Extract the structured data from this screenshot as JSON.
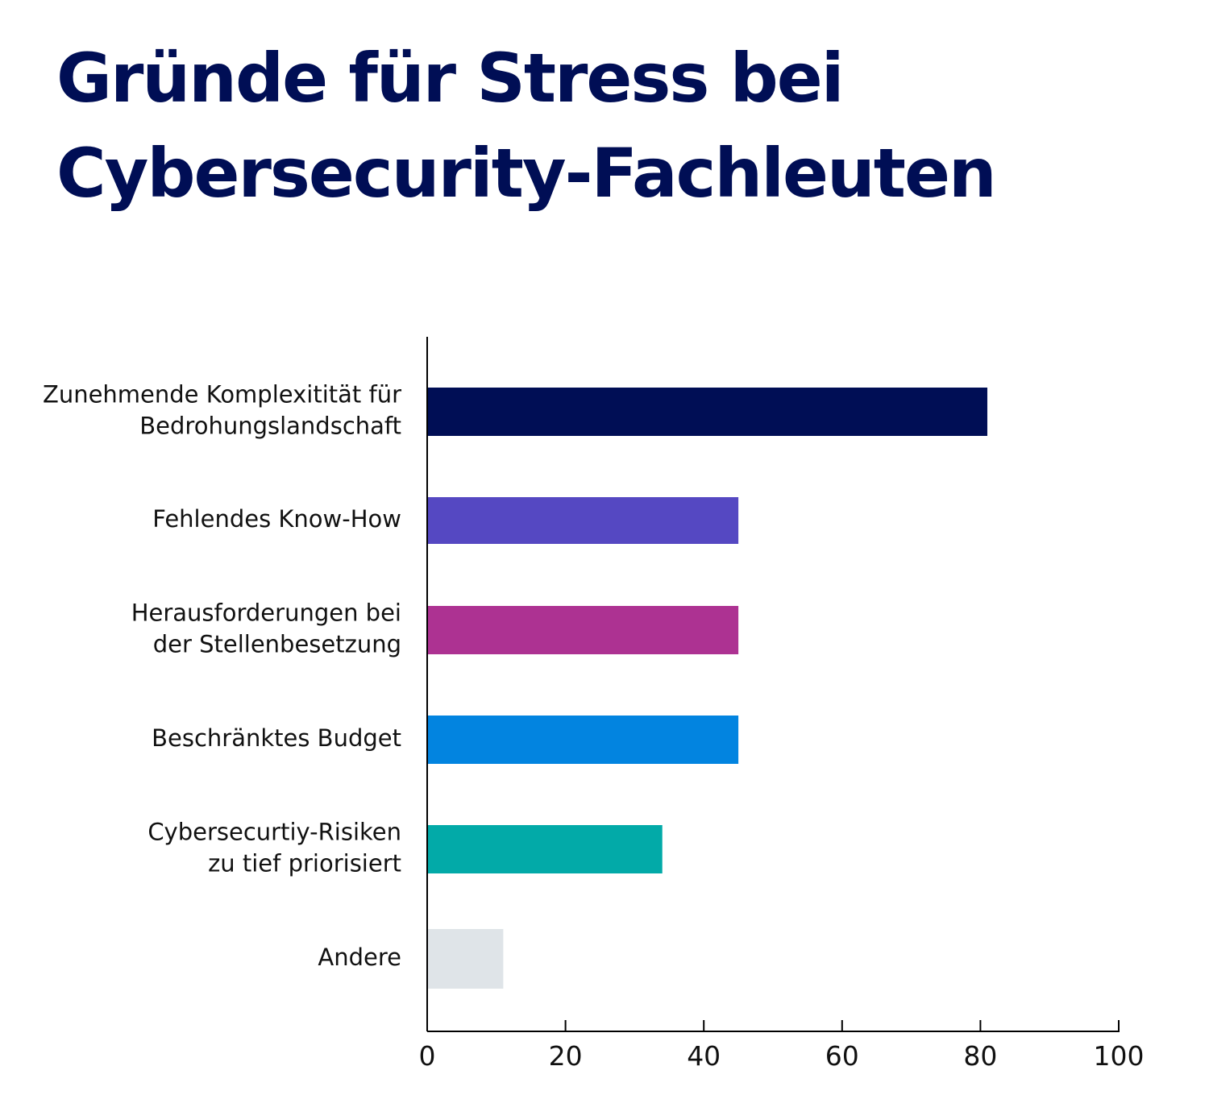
{
  "title_lines": [
    "Gründe für Stress bei",
    "Cybersecurity-Fachleuten"
  ],
  "colors": {
    "title": "#000e55",
    "axis": "#000000",
    "text": "#111111"
  },
  "chart_data": {
    "type": "bar",
    "orientation": "horizontal",
    "categories": [
      [
        "Zunehmende Komplexitität für",
        "Bedrohungslandschaft"
      ],
      [
        "Fehlendes Know-How"
      ],
      [
        "Herausforderungen bei",
        "der Stellenbesetzung"
      ],
      [
        "Beschränktes Budget"
      ],
      [
        "Cybersecurtiy-Risiken",
        "zu tief priorisiert"
      ],
      [
        "Andere"
      ]
    ],
    "values": [
      81,
      45,
      45,
      45,
      34,
      11
    ],
    "bar_colors": [
      "#000e55",
      "#5548c2",
      "#ad3292",
      "#0284e0",
      "#02aaa8",
      "#dfe4e8"
    ],
    "xlim": [
      0,
      100
    ],
    "xticks": [
      "0",
      "20",
      "40",
      "60",
      "80",
      "100"
    ],
    "grid": false,
    "legend": "none"
  }
}
